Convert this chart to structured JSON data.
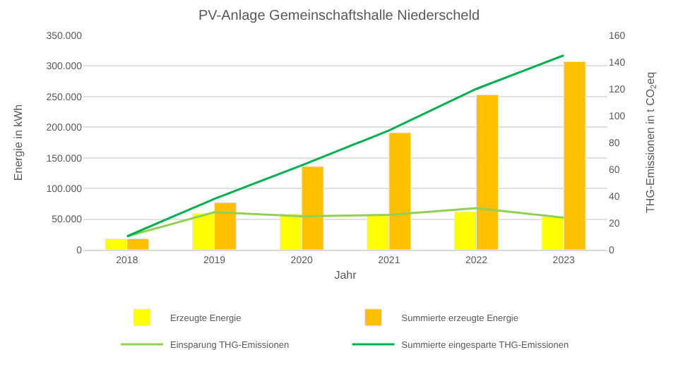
{
  "chart_data": {
    "type": "bar",
    "title": "PV-Anlage Gemeinschaftshalle Niederscheld",
    "xlabel": "Jahr",
    "ylabel": "Energie in kWh",
    "y2label": "THG-Emissionen in t CO$_{2}$eq",
    "categories": [
      "2018",
      "2019",
      "2020",
      "2021",
      "2022",
      "2023"
    ],
    "series": [
      {
        "name": "Erzeugte Energie",
        "color": "#ffff00",
        "values": [
          18000,
          59000,
          58000,
          56000,
          62000,
          54000
        ]
      },
      {
        "name": "Summierte erzeugte Energie",
        "color": "#ffc000",
        "values": [
          18000,
          77000,
          136000,
          191000,
          253000,
          307000
        ]
      },
      {
        "name": "Einsparung THG-Emissionen",
        "color": "#92d050",
        "type": "line",
        "axis": "y2",
        "values": [
          10,
          28,
          25,
          26,
          31,
          24
        ]
      },
      {
        "name": "Summierte eingesparte THG-Emissionen",
        "color": "#00b050",
        "type": "line",
        "axis": "y2",
        "values": [
          10,
          38,
          63,
          89,
          120,
          145
        ]
      }
    ],
    "ylim": [
      0,
      350000
    ],
    "yticks": [
      {
        "value": 0,
        "label": "0"
      },
      {
        "value": 50000,
        "label": "50.000"
      },
      {
        "value": 100000,
        "label": "100.000"
      },
      {
        "value": 150000,
        "label": "150.000"
      },
      {
        "value": 200000,
        "label": "200.000"
      },
      {
        "value": 250000,
        "label": "250.000"
      },
      {
        "value": 300000,
        "label": "300.000"
      },
      {
        "value": 350000,
        "label": "350.000"
      }
    ],
    "y2lim": [
      0,
      160
    ],
    "y2ticks": [
      0,
      20,
      40,
      60,
      80,
      100,
      120,
      140,
      160
    ],
    "grid": "y",
    "legend": "bottom",
    "marker": "none",
    "line_style": "solid"
  }
}
